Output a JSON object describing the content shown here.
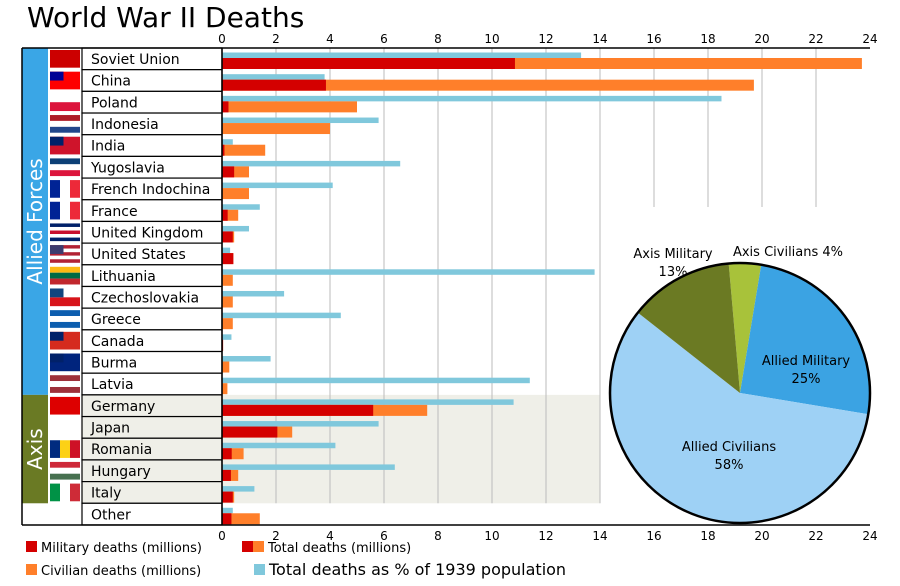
{
  "title": "World War II Deaths",
  "colors": {
    "military": "#d40000",
    "civilian": "#ff7f2a",
    "percent": "#80c8dc",
    "allied_group": "#3aa6e6",
    "axis_group": "#6a7a24",
    "axis_band": "#efefe8"
  },
  "groups": [
    {
      "label": "Allied Forces",
      "first": 0,
      "last": 15
    },
    {
      "label": "Axis",
      "first": 16,
      "last": 20
    }
  ],
  "chart_data": {
    "type": "bar",
    "orientation": "horizontal",
    "xlim": [
      0,
      24
    ],
    "xticks": [
      0,
      2,
      4,
      6,
      8,
      10,
      12,
      14,
      16,
      18,
      20,
      22,
      24
    ],
    "grid": true,
    "categories": [
      "Soviet Union",
      "China",
      "Poland",
      "Indonesia",
      "India",
      "Yugoslavia",
      "French Indochina",
      "France",
      "United Kingdom",
      "United States",
      "Lithuania",
      "Czechoslovakia",
      "Greece",
      "Canada",
      "Burma",
      "Latvia",
      "Germany",
      "Japan",
      "Romania",
      "Hungary",
      "Italy",
      "Other"
    ],
    "series": [
      {
        "name": "Military deaths (millions)",
        "values": [
          10.85,
          3.85,
          0.24,
          0,
          0.09,
          0.45,
          0,
          0.21,
          0.4,
          0.42,
          0,
          0,
          0,
          0.04,
          0,
          0,
          5.6,
          2.05,
          0.36,
          0.33,
          0.4,
          0.35
        ]
      },
      {
        "name": "Total deaths (millions)",
        "values": [
          23.7,
          19.7,
          5.0,
          4.0,
          1.6,
          1.0,
          1.0,
          0.6,
          0.45,
          0.42,
          0.4,
          0.4,
          0.4,
          0.04,
          0.27,
          0.2,
          7.6,
          2.6,
          0.8,
          0.6,
          0.45,
          1.4
        ]
      },
      {
        "name": "Total deaths as % of 1939 population",
        "values": [
          13.3,
          3.8,
          18.5,
          5.8,
          0.4,
          6.6,
          4.1,
          1.4,
          1.0,
          0.3,
          13.8,
          2.3,
          4.4,
          0.35,
          1.8,
          11.4,
          10.8,
          5.8,
          4.2,
          6.4,
          1.2,
          0.4
        ]
      }
    ],
    "legend": [
      {
        "label": "Military deaths (millions)",
        "swatch": [
          "#d40000"
        ]
      },
      {
        "label": "Total deaths (millions)",
        "swatch": [
          "#d40000",
          "#ff7f2a"
        ]
      },
      {
        "label": "Civilian deaths (millions)",
        "swatch": [
          "#ff7f2a"
        ]
      },
      {
        "label": "Total deaths as % of 1939 population",
        "swatch": [
          "#80c8dc"
        ]
      }
    ],
    "legend_placement": "bottom",
    "pie": {
      "type": "pie",
      "slices": [
        {
          "label": "Axis Civilians",
          "pct_label": "4%",
          "value": 4,
          "color": "#a8c23a"
        },
        {
          "label": "Allied Military",
          "pct_label": "25%",
          "value": 25,
          "color": "#3ba3e3"
        },
        {
          "label": "Allied Civilians",
          "pct_label": "58%",
          "value": 58,
          "color": "#9ed1f5"
        },
        {
          "label": "Axis Military",
          "pct_label": "13%",
          "value": 13,
          "color": "#6b7a23"
        }
      ]
    }
  },
  "flags": [
    {
      "dir": "h",
      "c": [
        "#cc0000"
      ]
    },
    {
      "dir": "h",
      "c": [
        "#fe0000"
      ],
      "canton": "#000095"
    },
    {
      "dir": "h",
      "c": [
        "#ffffff",
        "#dc143c"
      ]
    },
    {
      "dir": "h",
      "c": [
        "#ae1c28",
        "#ffffff",
        "#21468b"
      ]
    },
    {
      "dir": "h",
      "c": [
        "#cf142b"
      ],
      "canton": "#012169"
    },
    {
      "dir": "h",
      "c": [
        "#0c4076",
        "#ffffff",
        "#dc143c"
      ]
    },
    {
      "dir": "v",
      "c": [
        "#002395",
        "#ffffff",
        "#ed2939"
      ]
    },
    {
      "dir": "v",
      "c": [
        "#002395",
        "#ffffff",
        "#ed2939"
      ]
    },
    {
      "dir": "h",
      "c": [
        "#012169",
        "#ffffff",
        "#c8102e",
        "#ffffff",
        "#012169"
      ]
    },
    {
      "dir": "h",
      "c": [
        "#b22234",
        "#ffffff",
        "#b22234",
        "#ffffff",
        "#b22234"
      ],
      "canton": "#3c3b6e"
    },
    {
      "dir": "h",
      "c": [
        "#fdb913",
        "#006a44",
        "#c1272d"
      ]
    },
    {
      "dir": "h",
      "c": [
        "#ffffff",
        "#d7141a"
      ],
      "canton": "#11457e"
    },
    {
      "dir": "h",
      "c": [
        "#0d5eaf",
        "#ffffff",
        "#0d5eaf"
      ]
    },
    {
      "dir": "h",
      "c": [
        "#d52b1e"
      ],
      "canton": "#012169"
    },
    {
      "dir": "h",
      "c": [
        "#00247d"
      ],
      "canton": "#012169"
    },
    {
      "dir": "h",
      "c": [
        "#9e3039",
        "#ffffff",
        "#9e3039"
      ]
    },
    {
      "dir": "h",
      "c": [
        "#dd0000"
      ]
    },
    {
      "dir": "h",
      "c": [
        "#ffffff"
      ]
    },
    {
      "dir": "v",
      "c": [
        "#002b7f",
        "#fcd116",
        "#ce1126"
      ]
    },
    {
      "dir": "h",
      "c": [
        "#ce2939",
        "#ffffff",
        "#477050"
      ]
    },
    {
      "dir": "v",
      "c": [
        "#009246",
        "#ffffff",
        "#ce2b37"
      ]
    },
    {
      "dir": "h",
      "c": [
        "#ffffff"
      ]
    }
  ]
}
